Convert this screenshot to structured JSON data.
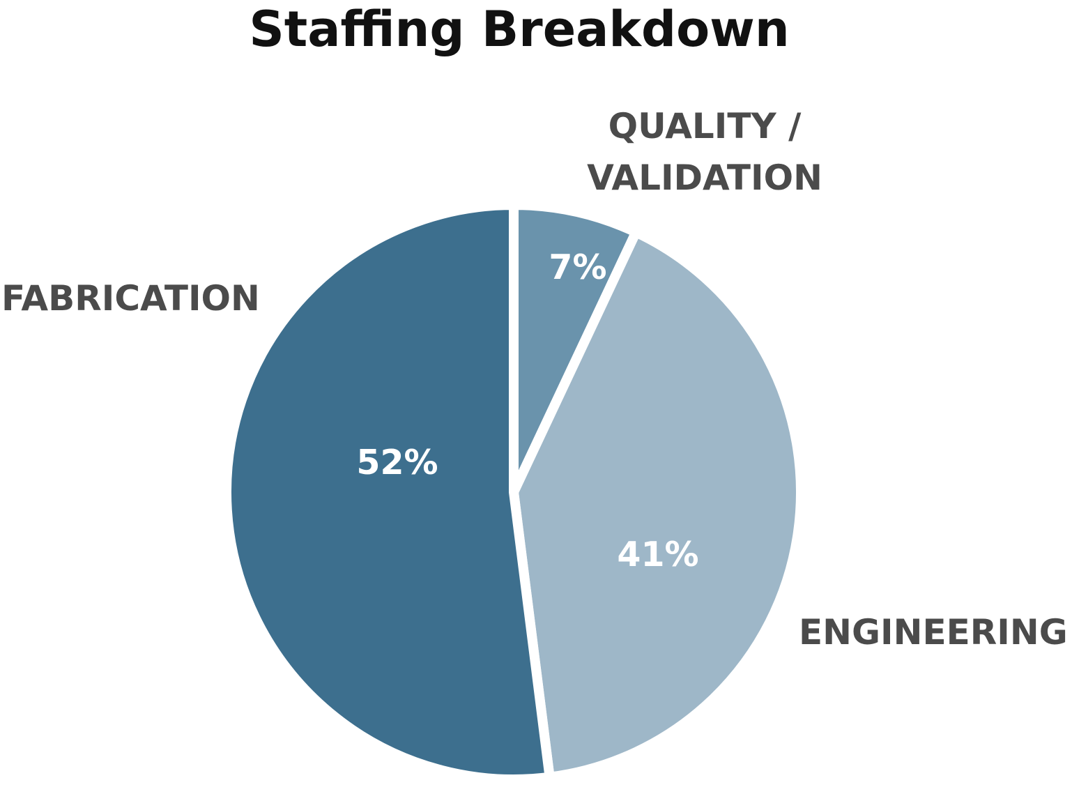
{
  "chart_data": {
    "type": "pie",
    "title": "Staffing Breakdown",
    "slices": [
      {
        "label": "QUALITY / VALIDATION",
        "label_lines": [
          "QUALITY /",
          "VALIDATION"
        ],
        "value": 7,
        "value_label": "7%",
        "color": "#6a93ac"
      },
      {
        "label": "ENGINEERING",
        "label_lines": [
          "ENGINEERING"
        ],
        "value": 41,
        "value_label": "41%",
        "color": "#9eb7c8"
      },
      {
        "label": "FABRICATION",
        "label_lines": [
          "FABRICATION"
        ],
        "value": 52,
        "value_label": "52%",
        "color": "#3d6f8e"
      }
    ],
    "start_angle": "12 o'clock",
    "direction": "clockwise",
    "legend": "none"
  }
}
